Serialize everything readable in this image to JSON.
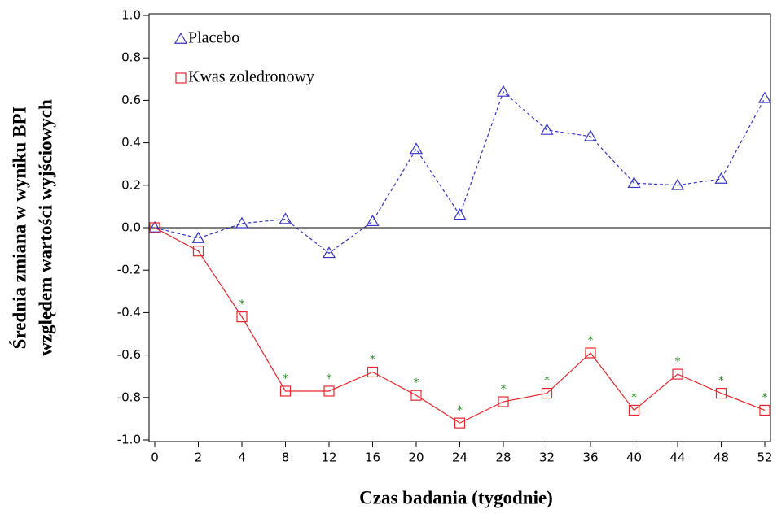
{
  "chart_data": {
    "type": "line",
    "xlabel": "Czas badania (tygodnie)",
    "ylabel": [
      "Średnia zmiana w wyniku BPI",
      "względem wartości wyjściowych"
    ],
    "categories": [
      "0",
      "2",
      "4",
      "8",
      "12",
      "16",
      "20",
      "24",
      "28",
      "32",
      "36",
      "40",
      "44",
      "48",
      "52"
    ],
    "series": [
      {
        "name": "Placebo",
        "color": "#3333cc",
        "marker": "triangle",
        "dash": true,
        "values": [
          0,
          -0.05,
          0.02,
          0.04,
          -0.12,
          0.03,
          0.37,
          0.06,
          0.64,
          0.46,
          0.43,
          0.21,
          0.2,
          0.23,
          0.61
        ]
      },
      {
        "name": "Kwas zoledronowy",
        "color": "#e8262b",
        "marker": "square",
        "dash": false,
        "values": [
          0,
          -0.11,
          -0.42,
          -0.77,
          -0.77,
          -0.68,
          -0.79,
          -0.92,
          -0.82,
          -0.78,
          -0.59,
          -0.86,
          -0.69,
          -0.78,
          -0.86
        ],
        "annotations": [
          null,
          null,
          "*",
          "*",
          "*",
          "*",
          "*",
          "*",
          "*",
          "*",
          "*",
          "*",
          "*",
          "*",
          "*"
        ],
        "annotation_color": "#2a8a2a"
      }
    ],
    "ylim": [
      -1.0,
      1.0
    ],
    "yticks": [
      {
        "value": -1.0,
        "label": "-1.0"
      },
      {
        "value": -0.8,
        "label": "-0.8"
      },
      {
        "value": -0.6,
        "label": "-0.6"
      },
      {
        "value": -0.4,
        "label": "-0.4"
      },
      {
        "value": -0.2,
        "label": "-0.2"
      },
      {
        "value": 0,
        "label": "0.0"
      },
      {
        "value": 0.2,
        "label": "0.2"
      },
      {
        "value": 0.4,
        "label": "0.4"
      },
      {
        "value": 0.6,
        "label": "0.6"
      },
      {
        "value": 0.8,
        "label": "0.8"
      },
      {
        "value": 1.0,
        "label": "1.0"
      }
    ],
    "hline": 0,
    "grid": false,
    "legend": "upper left"
  }
}
